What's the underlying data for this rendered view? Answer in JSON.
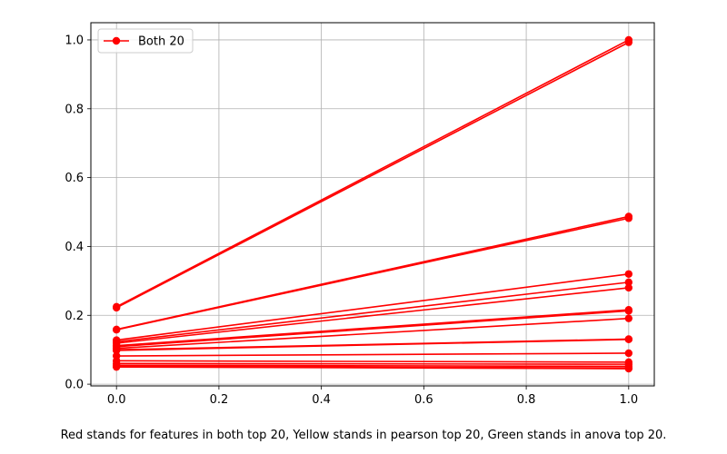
{
  "chart_data": {
    "type": "line",
    "title": "",
    "xlabel": "",
    "ylabel": "",
    "xlim": [
      -0.05,
      1.05
    ],
    "ylim": [
      -0.005,
      1.05
    ],
    "grid": true,
    "legend_position": "top-left",
    "x_ticks": [
      "0.0",
      "0.2",
      "0.4",
      "0.6",
      "0.8",
      "1.0"
    ],
    "y_ticks": [
      "0.0",
      "0.2",
      "0.4",
      "0.6",
      "0.8",
      "1.0"
    ],
    "legend": [
      {
        "label": "Both 20",
        "color": "#ff0000"
      }
    ],
    "series_color": "#ff0000",
    "lines": [
      {
        "x": [
          0,
          1
        ],
        "y": [
          0.225,
          1.0
        ]
      },
      {
        "x": [
          0,
          1
        ],
        "y": [
          0.222,
          0.993
        ]
      },
      {
        "x": [
          0,
          1
        ],
        "y": [
          0.159,
          0.487
        ]
      },
      {
        "x": [
          0,
          1
        ],
        "y": [
          0.158,
          0.482
        ]
      },
      {
        "x": [
          0,
          1
        ],
        "y": [
          0.128,
          0.32
        ]
      },
      {
        "x": [
          0,
          1
        ],
        "y": [
          0.123,
          0.296
        ]
      },
      {
        "x": [
          0,
          1
        ],
        "y": [
          0.119,
          0.28
        ]
      },
      {
        "x": [
          0,
          1
        ],
        "y": [
          0.112,
          0.216
        ]
      },
      {
        "x": [
          0,
          1
        ],
        "y": [
          0.109,
          0.213
        ]
      },
      {
        "x": [
          0,
          1
        ],
        "y": [
          0.104,
          0.191
        ]
      },
      {
        "x": [
          0,
          1
        ],
        "y": [
          0.1,
          0.131
        ]
      },
      {
        "x": [
          0,
          1
        ],
        "y": [
          0.098,
          0.13
        ]
      },
      {
        "x": [
          0,
          1
        ],
        "y": [
          0.082,
          0.09
        ]
      },
      {
        "x": [
          0,
          1
        ],
        "y": [
          0.068,
          0.064
        ]
      },
      {
        "x": [
          0,
          1
        ],
        "y": [
          0.06,
          0.058
        ]
      },
      {
        "x": [
          0,
          1
        ],
        "y": [
          0.055,
          0.052
        ]
      },
      {
        "x": [
          0,
          1
        ],
        "y": [
          0.052,
          0.047
        ]
      },
      {
        "x": [
          0,
          1
        ],
        "y": [
          0.05,
          0.045
        ]
      }
    ]
  },
  "caption": "Red stands for features in both top 20, Yellow stands in pearson top 20, Green stands in anova top 20."
}
